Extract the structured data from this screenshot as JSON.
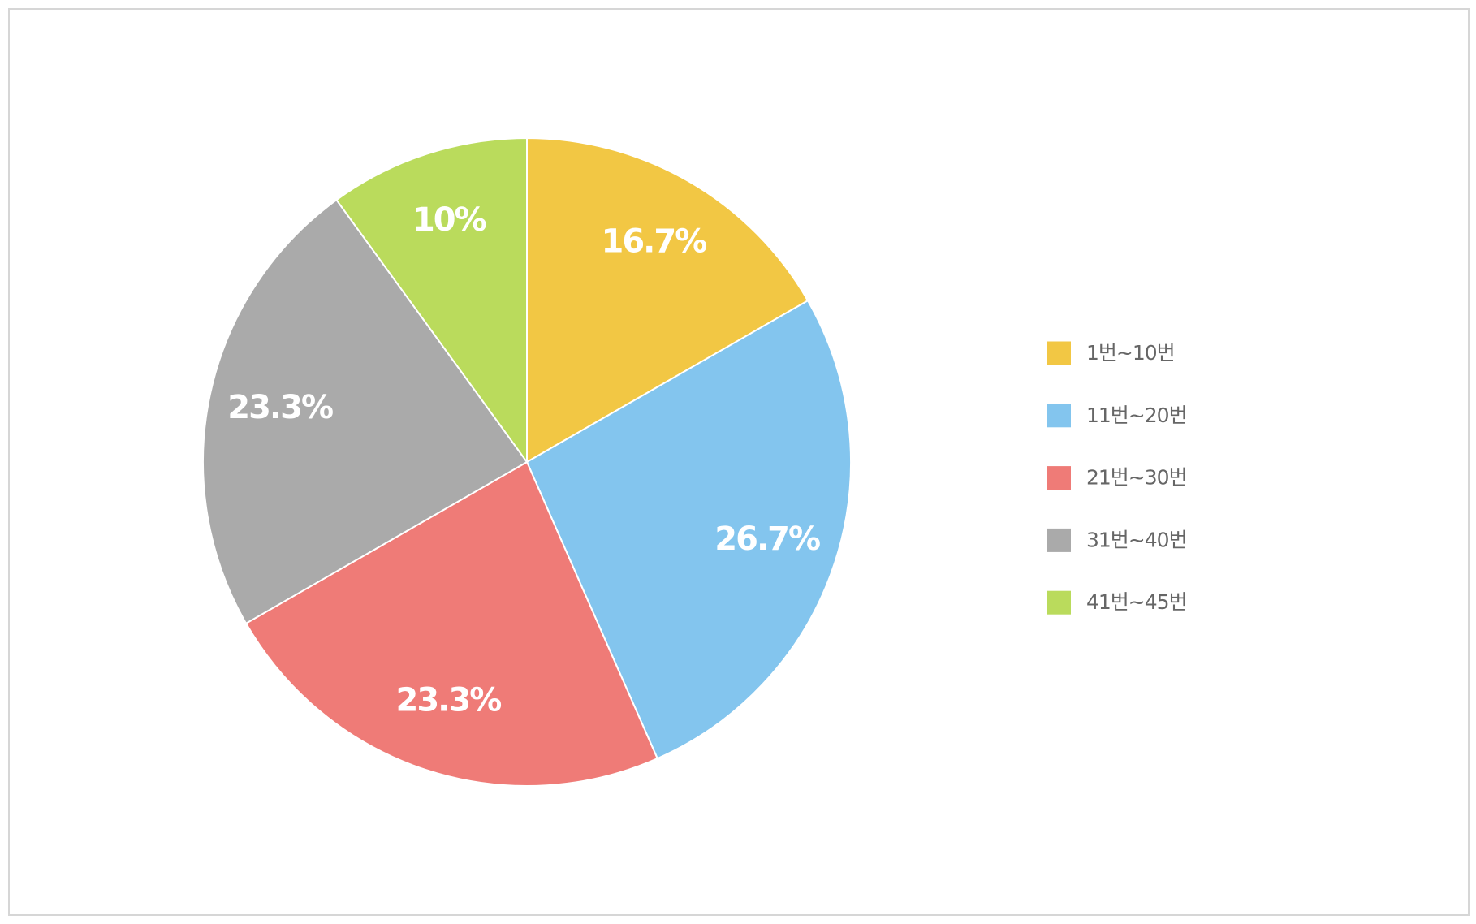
{
  "chart_data": {
    "type": "pie",
    "categories": [
      "1번~10번",
      "11번~20번",
      "21번~30번",
      "31번~40번",
      "41번~45번"
    ],
    "values": [
      16.7,
      26.7,
      23.3,
      23.3,
      10
    ],
    "value_labels": [
      "16.7%",
      "26.7%",
      "23.3%",
      "23.3%",
      "10%"
    ],
    "colors": [
      "#f2c744",
      "#83c5ee",
      "#ef7b77",
      "#aaaaaa",
      "#badb5c"
    ],
    "legend": "right"
  }
}
